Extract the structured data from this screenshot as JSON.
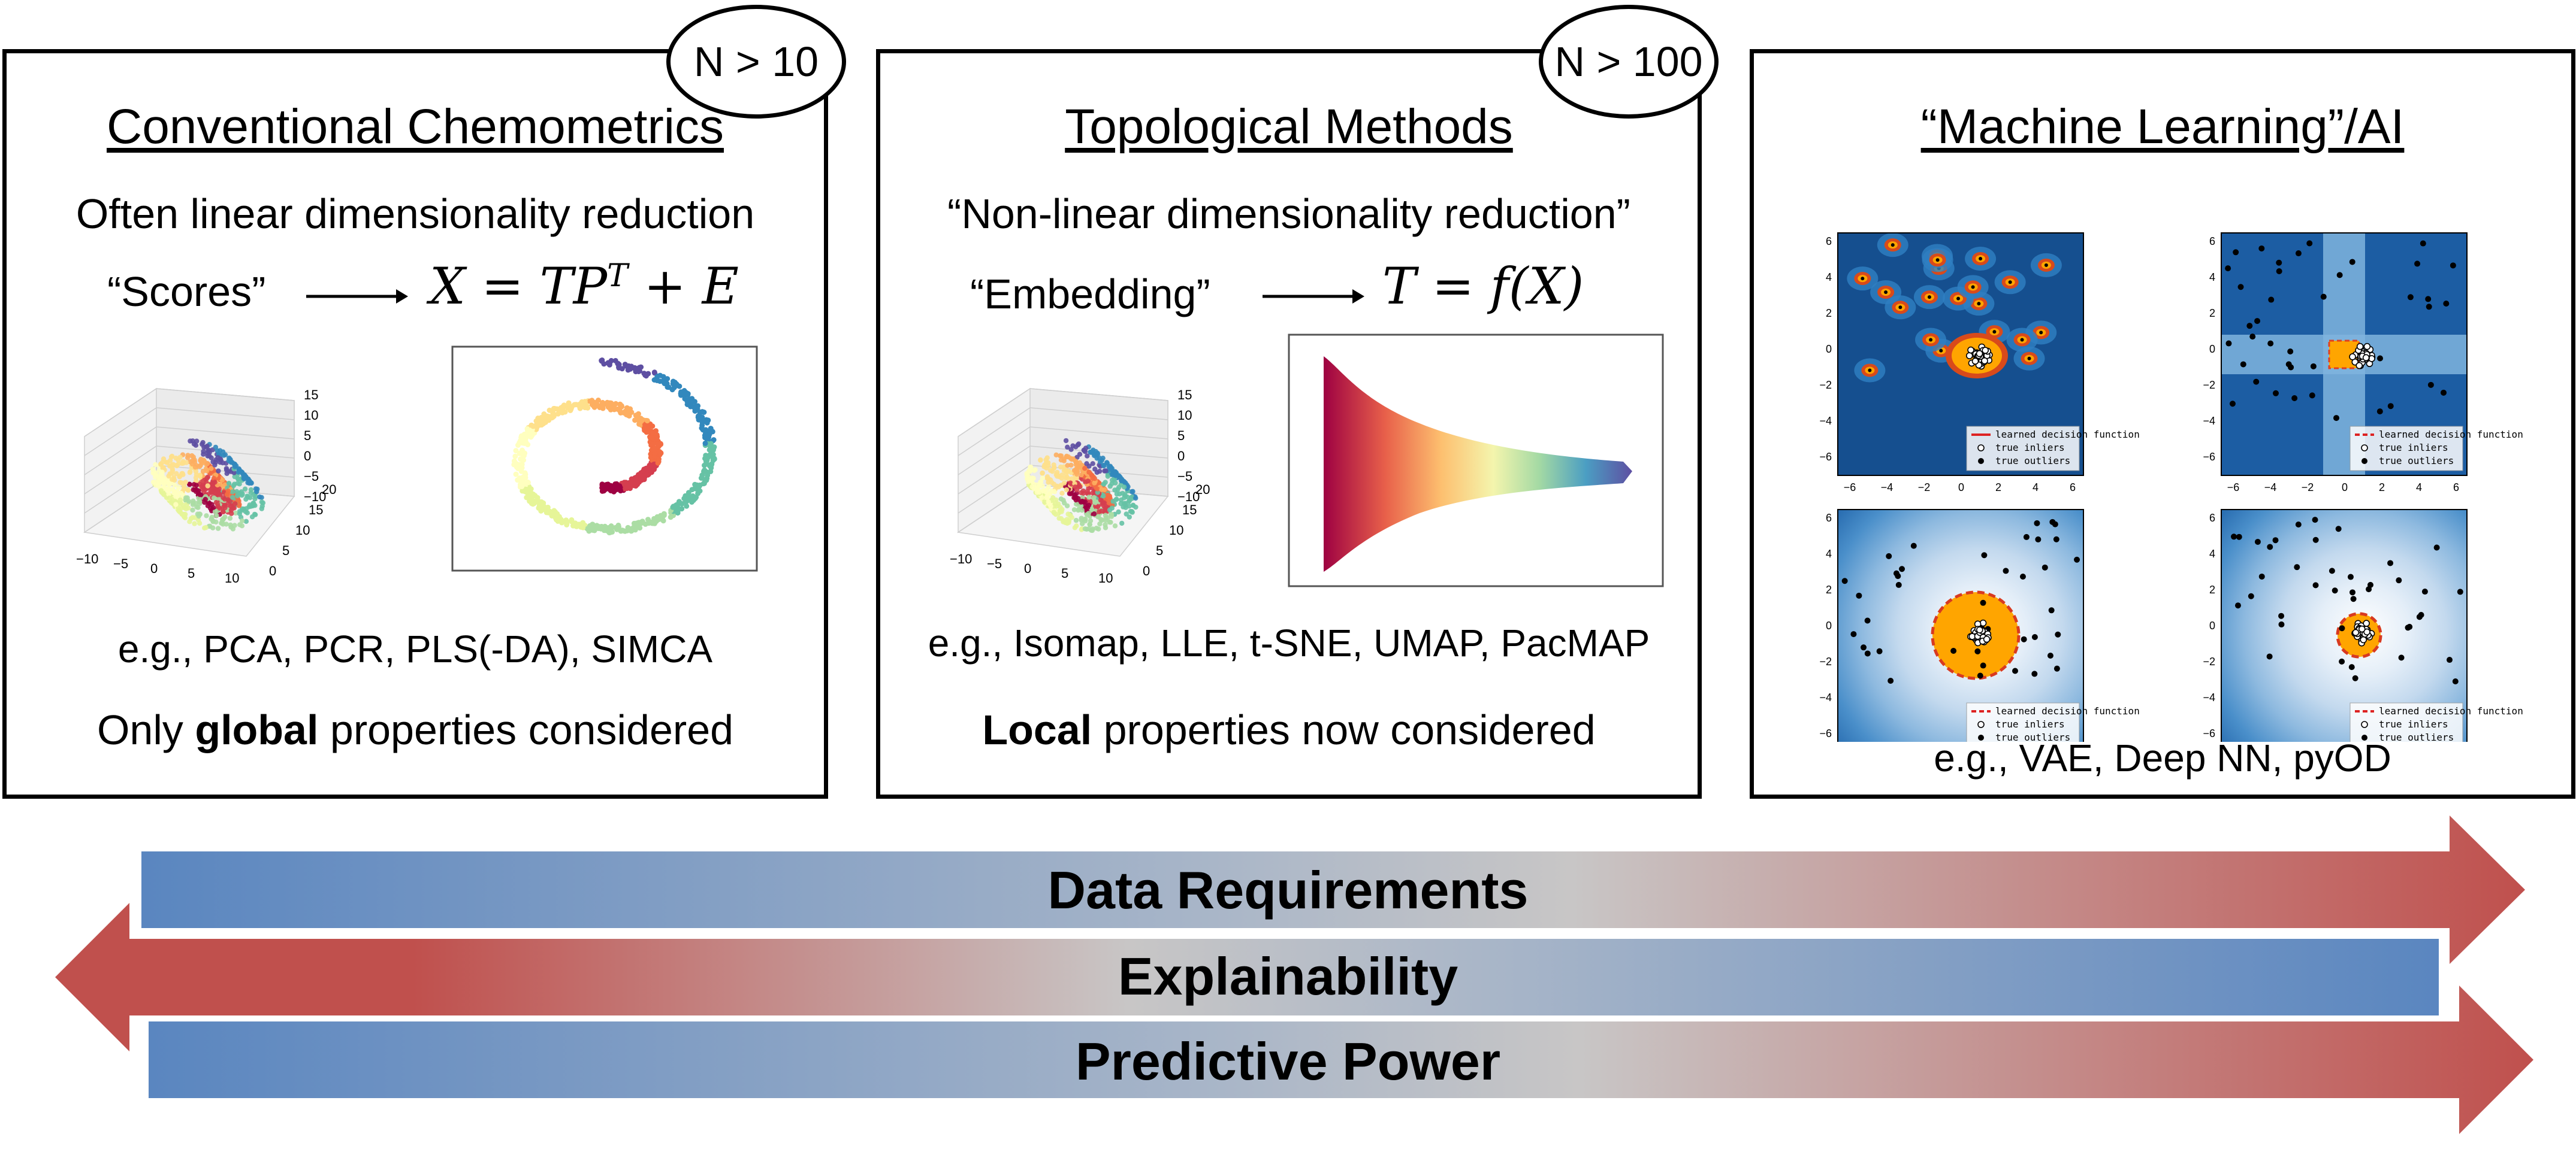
{
  "panels": [
    {
      "badge": "N > 10",
      "title": "Conventional Chemometrics",
      "line1": "Often linear dimensionality reduction",
      "arrow_left": "“Scores”",
      "equation": "X = TP",
      "equation_sup": "T",
      "equation_tail": " + E",
      "examples": "e.g., PCA, PCR, PLS(-DA), SIMCA",
      "footer_pre": "Only ",
      "footer_bold": "global",
      "footer_post": " properties considered"
    },
    {
      "badge": "N > 100",
      "title": "Topological Methods",
      "line1": "“Non-linear dimensionality reduction”",
      "arrow_left": "“Embedding”",
      "equation": "T = f(X)",
      "examples": "e.g., Isomap, LLE, t-SNE, UMAP, PacMAP",
      "footer_bold": "Local",
      "footer_post": " properties now considered"
    },
    {
      "title": "“Machine Learning”/AI",
      "examples": "e.g., VAE, Deep NN, pyOD"
    }
  ],
  "plot3d": {
    "xticks": [
      "−10",
      "−5",
      "0",
      "5",
      "10"
    ],
    "zticks": [
      "15",
      "10",
      "5",
      "0",
      "−5",
      "−10"
    ],
    "yticks": [
      "0",
      "5",
      "10",
      "15",
      "20"
    ]
  },
  "ml_plots": {
    "ticks": [
      "−6",
      "−4",
      "−2",
      "0",
      "2",
      "4",
      "6"
    ],
    "legend_learned": "learned decision function",
    "legend_inliers": "true inliers",
    "legend_outliers": "true outliers"
  },
  "bars": [
    {
      "label": "Data Requirements",
      "direction": "right"
    },
    {
      "label": "Explainability",
      "direction": "left"
    },
    {
      "label": "Predictive Power",
      "direction": "right"
    }
  ],
  "colors": {
    "blue": "#5a86c0",
    "gray": "#c8c6c6",
    "red": "#c0504d",
    "ml_dark": "#154f8f",
    "orange": "#ffa500"
  }
}
